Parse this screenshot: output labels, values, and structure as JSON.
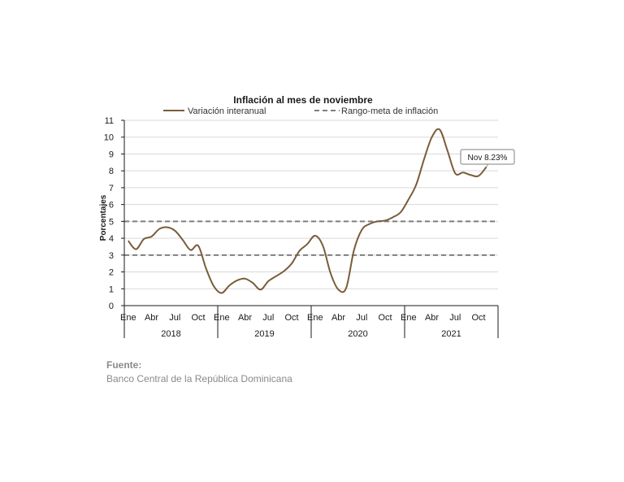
{
  "chart_data": {
    "type": "line",
    "title": "Inflación al mes de noviembre",
    "ylabel": "Porcentajes",
    "xlabel": "",
    "ylim": [
      0,
      11
    ],
    "yticks": [
      0,
      1,
      2,
      3,
      4,
      5,
      6,
      7,
      8,
      9,
      10,
      11
    ],
    "grid": true,
    "legend_position": "top",
    "month_labels": [
      "Ene",
      "Abr",
      "Jul",
      "Oct",
      "Ene",
      "Abr",
      "Jul",
      "Oct",
      "Ene",
      "Abr",
      "Jul",
      "Oct",
      "Ene",
      "Abr",
      "Jul",
      "Oct"
    ],
    "year_labels": [
      "2018",
      "2019",
      "2020",
      "2021"
    ],
    "series": [
      {
        "name": "Variación interanual",
        "color": "#7a5c3a",
        "style": "solid",
        "x": [
          "2018-01",
          "2018-02",
          "2018-03",
          "2018-04",
          "2018-05",
          "2018-06",
          "2018-07",
          "2018-08",
          "2018-09",
          "2018-10",
          "2018-11",
          "2018-12",
          "2019-01",
          "2019-02",
          "2019-03",
          "2019-04",
          "2019-05",
          "2019-06",
          "2019-07",
          "2019-08",
          "2019-09",
          "2019-10",
          "2019-11",
          "2019-12",
          "2020-01",
          "2020-02",
          "2020-03",
          "2020-04",
          "2020-05",
          "2020-06",
          "2020-07",
          "2020-08",
          "2020-09",
          "2020-10",
          "2020-11",
          "2020-12",
          "2021-01",
          "2021-02",
          "2021-03",
          "2021-04",
          "2021-05",
          "2021-06",
          "2021-07",
          "2021-08",
          "2021-09",
          "2021-10",
          "2021-11"
        ],
        "values": [
          3.85,
          3.35,
          3.95,
          4.1,
          4.55,
          4.65,
          4.45,
          3.9,
          3.3,
          3.55,
          2.2,
          1.15,
          0.75,
          1.2,
          1.5,
          1.6,
          1.35,
          0.95,
          1.45,
          1.75,
          2.05,
          2.5,
          3.25,
          3.65,
          4.15,
          3.55,
          1.9,
          0.95,
          1.05,
          3.3,
          4.5,
          4.85,
          5.0,
          5.05,
          5.25,
          5.55,
          6.3,
          7.2,
          8.7,
          10.0,
          10.45,
          9.2,
          7.85,
          7.9,
          7.75,
          7.7,
          8.23
        ]
      },
      {
        "name": "Rango-meta de inflación",
        "color": "#7f7f7f",
        "style": "dashed",
        "bands": [
          3,
          5
        ]
      }
    ],
    "annotation": {
      "text": "Nov 8.23%",
      "x": "2021-11",
      "y": 8.23
    }
  },
  "source": {
    "label": "Fuente:",
    "text": "Banco Central de la República Dominicana"
  }
}
